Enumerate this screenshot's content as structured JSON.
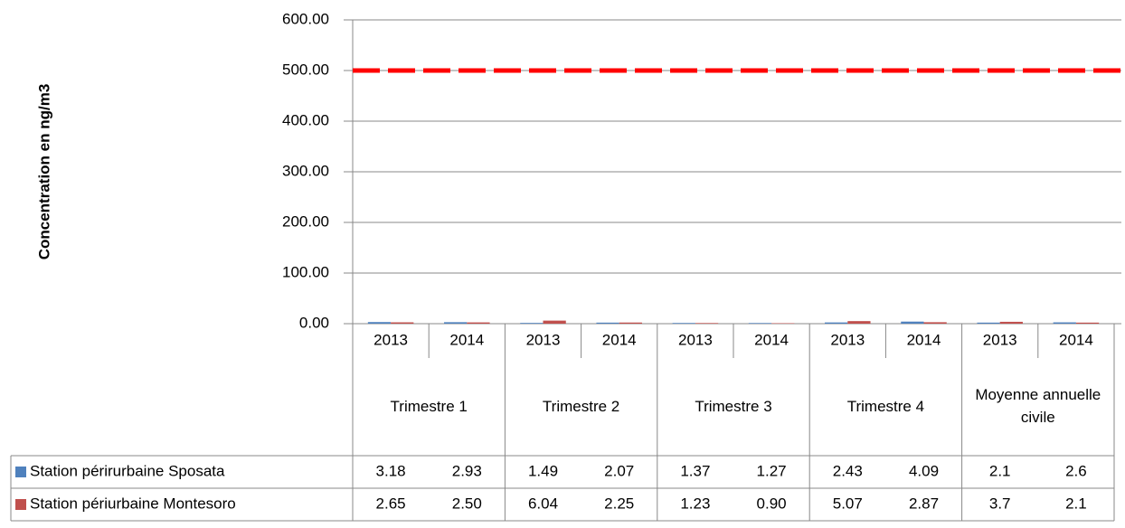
{
  "chart_data": {
    "type": "bar",
    "y_axis_label": "Concentration en ng/m3",
    "categories": [
      "2013",
      "2014",
      "2013",
      "2014",
      "2013",
      "2014",
      "2013",
      "2014",
      "2013",
      "2014"
    ],
    "groups": [
      "Trimestre 1",
      "Trimestre 2",
      "Trimestre 3",
      "Trimestre 4",
      "Moyenne annuelle civile"
    ],
    "series": [
      {
        "name": "Station périrurbaine Sposata",
        "color": "#4f81bd",
        "values": [
          3.18,
          2.93,
          1.49,
          2.07,
          1.37,
          1.27,
          2.43,
          4.09,
          2.1,
          2.6
        ],
        "value_labels": [
          "3.18",
          "2.93",
          "1.49",
          "2.07",
          "1.37",
          "1.27",
          "2.43",
          "4.09",
          "2.1",
          "2.6"
        ]
      },
      {
        "name": "Station périurbaine Montesoro",
        "color": "#c0504d",
        "values": [
          2.65,
          2.5,
          6.04,
          2.25,
          1.23,
          0.9,
          5.07,
          2.87,
          3.7,
          2.1
        ],
        "value_labels": [
          "2.65",
          "2.50",
          "6.04",
          "2.25",
          "1.23",
          "0.90",
          "5.07",
          "2.87",
          "3.7",
          "2.1"
        ]
      }
    ],
    "reference_line": {
      "value": 500,
      "color": "#ff0000"
    },
    "ylim": [
      0,
      600
    ],
    "yticks": [
      {
        "value": 0,
        "label": "0.00"
      },
      {
        "value": 100,
        "label": "100.00"
      },
      {
        "value": 200,
        "label": "200.00"
      },
      {
        "value": 300,
        "label": "300.00"
      },
      {
        "value": 400,
        "label": "400.00"
      },
      {
        "value": 500,
        "label": "500.00"
      },
      {
        "value": 600,
        "label": "600.00"
      }
    ],
    "grid": true
  }
}
